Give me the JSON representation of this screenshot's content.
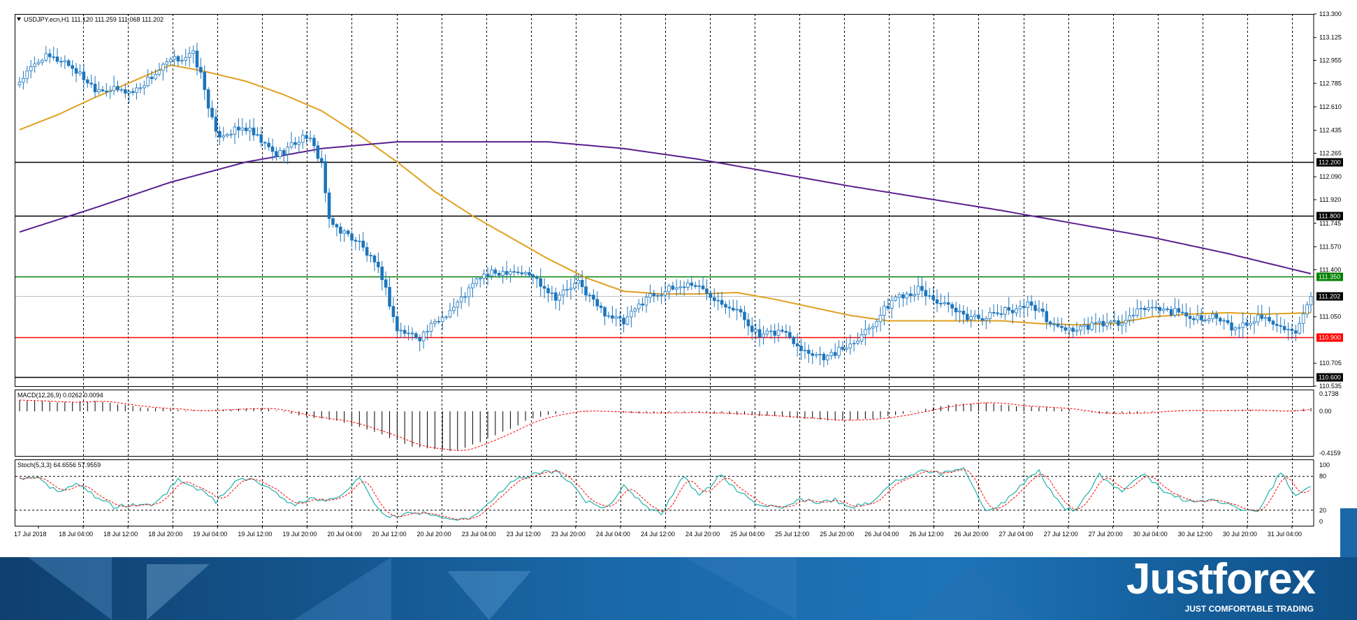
{
  "symbol_header": "USDJPY.ecn,H1  111.120 111.259 111.068 111.202",
  "macd_header": "MACD(12,26,9) 0.0262 0.0094",
  "stoch_header": "Stoch(5,3,3) 64.6556 57.9559",
  "brand": {
    "name": "Justforex",
    "tagline": "JUST COMFORTABLE TRADING"
  },
  "colors": {
    "bull": "#ffffff",
    "bear": "#1c75bc",
    "ma_fast": "#e0a020",
    "ma_slow": "#5a1f8f",
    "support": "#ff0000",
    "resistance": "#008000",
    "level": "#000000",
    "stoch_main": "#20b2aa",
    "stoch_signal": "#ff0000",
    "macd_signal": "#ff0000"
  },
  "chart_data": {
    "type": "candlestick",
    "instrument": "USDJPY.ecn",
    "timeframe": "H1",
    "price_axis": [
      "113.300",
      "113.125",
      "112.955",
      "112.785",
      "112.610",
      "112.435",
      "112.265",
      "112.090",
      "111.920",
      "111.745",
      "111.570",
      "111.400",
      "111.050",
      "110.705",
      "110.535"
    ],
    "ylim": [
      110.535,
      113.3
    ],
    "time_labels": [
      "17 Jul 2018",
      "18 Jul 04:00",
      "18 Jul 12:00",
      "18 Jul 20:00",
      "19 Jul 04:00",
      "19 Jul 12:00",
      "19 Jul 20:00",
      "20 Jul 04:00",
      "20 Jul 12:00",
      "20 Jul 20:00",
      "23 Jul 04:00",
      "23 Jul 12:00",
      "23 Jul 20:00",
      "24 Jul 04:00",
      "24 Jul 12:00",
      "24 Jul 20:00",
      "25 Jul 04:00",
      "25 Jul 12:00",
      "25 Jul 20:00",
      "26 Jul 04:00",
      "26 Jul 12:00",
      "26 Jul 20:00",
      "27 Jul 04:00",
      "27 Jul 12:00",
      "27 Jul 20:00",
      "30 Jul 04:00",
      "30 Jul 12:00",
      "30 Jul 20:00",
      "31 Jul 04:00"
    ],
    "horizontal_levels": [
      {
        "price": 112.2,
        "label": "112.200",
        "color": "#000000"
      },
      {
        "price": 111.8,
        "label": "111.800",
        "color": "#000000"
      },
      {
        "price": 111.35,
        "label": "111.350",
        "color": "#008000"
      },
      {
        "price": 111.202,
        "label": "111.202",
        "color": "#c0c0c0"
      },
      {
        "price": 110.9,
        "label": "110.900",
        "color": "#ff0000"
      },
      {
        "price": 110.6,
        "label": "110.600",
        "color": "#000000"
      }
    ],
    "close_anchors": [
      [
        0,
        112.8
      ],
      [
        6,
        112.98
      ],
      [
        12,
        112.95
      ],
      [
        20,
        112.75
      ],
      [
        30,
        112.72
      ],
      [
        40,
        112.95
      ],
      [
        46,
        113.0
      ],
      [
        48,
        112.85
      ],
      [
        52,
        112.4
      ],
      [
        60,
        112.45
      ],
      [
        68,
        112.25
      ],
      [
        76,
        112.4
      ],
      [
        80,
        112.2
      ],
      [
        82,
        111.75
      ],
      [
        90,
        111.6
      ],
      [
        96,
        111.35
      ],
      [
        100,
        110.95
      ],
      [
        106,
        110.9
      ],
      [
        110,
        111.0
      ],
      [
        116,
        111.15
      ],
      [
        122,
        111.35
      ],
      [
        130,
        111.4
      ],
      [
        136,
        111.35
      ],
      [
        142,
        111.2
      ],
      [
        148,
        111.3
      ],
      [
        154,
        111.1
      ],
      [
        160,
        111.0
      ],
      [
        166,
        111.2
      ],
      [
        172,
        111.25
      ],
      [
        178,
        111.3
      ],
      [
        184,
        111.2
      ],
      [
        190,
        111.1
      ],
      [
        196,
        110.9
      ],
      [
        202,
        110.95
      ],
      [
        208,
        110.8
      ],
      [
        214,
        110.75
      ],
      [
        220,
        110.85
      ],
      [
        226,
        111.0
      ],
      [
        232,
        111.2
      ],
      [
        238,
        111.25
      ],
      [
        244,
        111.15
      ],
      [
        250,
        111.05
      ],
      [
        256,
        111.05
      ],
      [
        262,
        111.1
      ],
      [
        268,
        111.15
      ],
      [
        274,
        110.98
      ],
      [
        280,
        110.95
      ],
      [
        286,
        111.0
      ],
      [
        292,
        111.0
      ],
      [
        298,
        111.12
      ],
      [
        304,
        111.1
      ],
      [
        310,
        111.05
      ],
      [
        316,
        111.05
      ],
      [
        322,
        110.95
      ],
      [
        328,
        111.05
      ],
      [
        334,
        111.0
      ],
      [
        338,
        110.9
      ],
      [
        342,
        111.202
      ]
    ],
    "ma_fast_anchors": [
      [
        0,
        112.44
      ],
      [
        10,
        112.55
      ],
      [
        20,
        112.68
      ],
      [
        30,
        112.8
      ],
      [
        40,
        112.92
      ],
      [
        48,
        112.88
      ],
      [
        60,
        112.8
      ],
      [
        70,
        112.7
      ],
      [
        80,
        112.58
      ],
      [
        90,
        112.4
      ],
      [
        100,
        112.2
      ],
      [
        110,
        111.98
      ],
      [
        120,
        111.8
      ],
      [
        130,
        111.64
      ],
      [
        140,
        111.48
      ],
      [
        150,
        111.34
      ],
      [
        160,
        111.24
      ],
      [
        170,
        111.22
      ],
      [
        180,
        111.22
      ],
      [
        190,
        111.23
      ],
      [
        200,
        111.18
      ],
      [
        210,
        111.12
      ],
      [
        220,
        111.06
      ],
      [
        230,
        111.02
      ],
      [
        240,
        111.02
      ],
      [
        260,
        111.02
      ],
      [
        270,
        111.0
      ],
      [
        280,
        110.99
      ],
      [
        290,
        111.0
      ],
      [
        300,
        111.05
      ],
      [
        310,
        111.07
      ],
      [
        320,
        111.08
      ],
      [
        330,
        111.07
      ],
      [
        342,
        111.08
      ]
    ],
    "ma_slow_anchors": [
      [
        0,
        111.68
      ],
      [
        20,
        111.86
      ],
      [
        40,
        112.05
      ],
      [
        60,
        112.2
      ],
      [
        80,
        112.3
      ],
      [
        100,
        112.35
      ],
      [
        120,
        112.35
      ],
      [
        140,
        112.35
      ],
      [
        160,
        112.3
      ],
      [
        180,
        112.22
      ],
      [
        200,
        112.12
      ],
      [
        220,
        112.02
      ],
      [
        240,
        111.93
      ],
      [
        260,
        111.84
      ],
      [
        280,
        111.74
      ],
      [
        300,
        111.64
      ],
      [
        320,
        111.52
      ],
      [
        342,
        111.37
      ]
    ],
    "macd_axis": [
      "0.1738",
      "0.00",
      "-0.4159"
    ],
    "macd_ylim": [
      -0.4159,
      0.1738
    ],
    "macd_anchors": [
      [
        0,
        0.11
      ],
      [
        10,
        0.09
      ],
      [
        20,
        0.1
      ],
      [
        30,
        0.05
      ],
      [
        45,
        0.0
      ],
      [
        55,
        0.02
      ],
      [
        65,
        0.03
      ],
      [
        75,
        -0.05
      ],
      [
        85,
        -0.1
      ],
      [
        95,
        -0.22
      ],
      [
        105,
        -0.36
      ],
      [
        115,
        -0.4
      ],
      [
        125,
        -0.26
      ],
      [
        135,
        -0.08
      ],
      [
        145,
        0.0
      ],
      [
        155,
        0.0
      ],
      [
        165,
        -0.02
      ],
      [
        175,
        -0.01
      ],
      [
        185,
        -0.02
      ],
      [
        195,
        -0.04
      ],
      [
        205,
        -0.06
      ],
      [
        215,
        -0.09
      ],
      [
        225,
        -0.08
      ],
      [
        235,
        -0.02
      ],
      [
        245,
        0.06
      ],
      [
        255,
        0.09
      ],
      [
        265,
        0.05
      ],
      [
        275,
        0.03
      ],
      [
        285,
        -0.02
      ],
      [
        295,
        -0.02
      ],
      [
        305,
        0.01
      ],
      [
        315,
        0.01
      ],
      [
        325,
        0.01
      ],
      [
        335,
        0.0
      ],
      [
        342,
        0.03
      ]
    ],
    "stoch_axis": [
      "100",
      "80",
      "20",
      "0"
    ],
    "stoch_ylim": [
      0,
      100
    ],
    "stoch_anchors": [
      [
        0,
        75
      ],
      [
        5,
        82
      ],
      [
        10,
        50
      ],
      [
        15,
        70
      ],
      [
        20,
        45
      ],
      [
        25,
        25
      ],
      [
        30,
        30
      ],
      [
        36,
        30
      ],
      [
        42,
        75
      ],
      [
        48,
        55
      ],
      [
        52,
        35
      ],
      [
        58,
        75
      ],
      [
        62,
        76
      ],
      [
        68,
        50
      ],
      [
        72,
        30
      ],
      [
        78,
        40
      ],
      [
        84,
        40
      ],
      [
        90,
        80
      ],
      [
        94,
        30
      ],
      [
        98,
        5
      ],
      [
        104,
        18
      ],
      [
        110,
        12
      ],
      [
        116,
        5
      ],
      [
        120,
        8
      ],
      [
        126,
        40
      ],
      [
        130,
        70
      ],
      [
        136,
        84
      ],
      [
        142,
        90
      ],
      [
        146,
        70
      ],
      [
        150,
        35
      ],
      [
        156,
        25
      ],
      [
        160,
        65
      ],
      [
        165,
        30
      ],
      [
        170,
        15
      ],
      [
        176,
        80
      ],
      [
        180,
        45
      ],
      [
        186,
        84
      ],
      [
        190,
        55
      ],
      [
        196,
        30
      ],
      [
        202,
        25
      ],
      [
        206,
        40
      ],
      [
        210,
        35
      ],
      [
        216,
        38
      ],
      [
        220,
        25
      ],
      [
        226,
        35
      ],
      [
        232,
        72
      ],
      [
        238,
        90
      ],
      [
        244,
        85
      ],
      [
        250,
        92
      ],
      [
        256,
        20
      ],
      [
        260,
        30
      ],
      [
        266,
        70
      ],
      [
        270,
        88
      ],
      [
        276,
        25
      ],
      [
        280,
        18
      ],
      [
        286,
        82
      ],
      [
        292,
        55
      ],
      [
        298,
        83
      ],
      [
        304,
        50
      ],
      [
        310,
        35
      ],
      [
        316,
        40
      ],
      [
        322,
        25
      ],
      [
        328,
        15
      ],
      [
        334,
        88
      ],
      [
        338,
        45
      ],
      [
        342,
        65
      ]
    ]
  }
}
